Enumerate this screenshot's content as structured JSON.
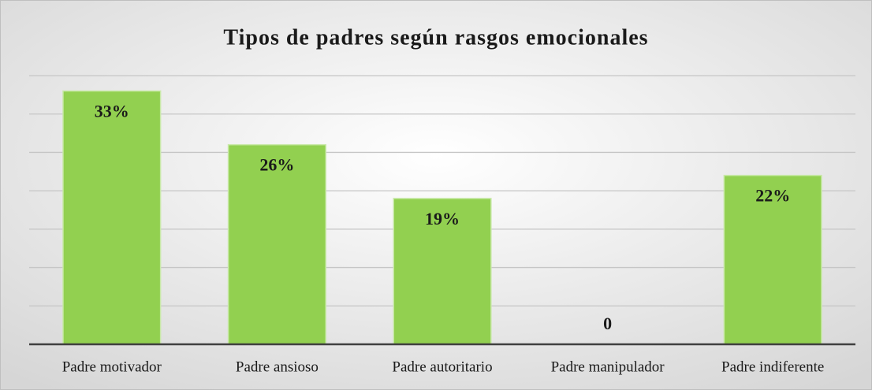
{
  "chart_data": {
    "type": "bar",
    "title": "Tipos de padres según rasgos emocionales",
    "categories": [
      "Padre motivador",
      "Padre ansioso",
      "Padre autoritario",
      "Padre manipulador",
      "Padre indiferente"
    ],
    "values": [
      33,
      26,
      19,
      0,
      22
    ],
    "value_labels": [
      "33%",
      "26%",
      "19%",
      "0",
      "22%"
    ],
    "color": "#92d050",
    "ylim": [
      0,
      35
    ],
    "yticks": [
      0,
      5,
      10,
      15,
      20,
      25,
      30,
      35
    ],
    "grid": true
  }
}
